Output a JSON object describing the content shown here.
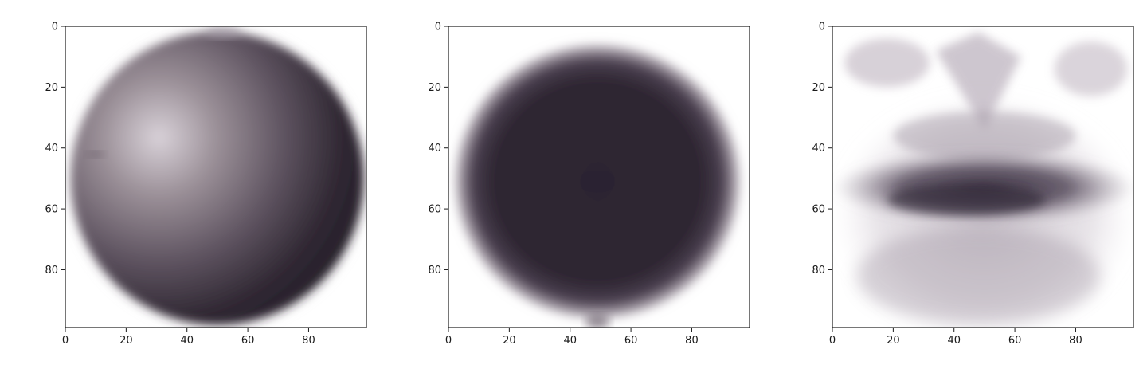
{
  "chart_data": [
    {
      "type": "heatmap",
      "title": "",
      "xlabel": "",
      "ylabel": "",
      "xlim": [
        0,
        99
      ],
      "ylim": [
        99,
        0
      ],
      "x_ticks": [
        0,
        20,
        40,
        60,
        80
      ],
      "y_ticks": [
        0,
        20,
        40,
        60,
        80
      ],
      "x_tick_labels": [
        "0",
        "20",
        "40",
        "60",
        "80"
      ],
      "y_tick_labels": [
        "0",
        "20",
        "40",
        "60",
        "80"
      ],
      "image": {
        "shape": "sphere",
        "center": [
          50,
          50
        ],
        "radius": 48,
        "highlight": [
          30,
          36
        ],
        "colormap": "purple-gray"
      }
    },
    {
      "type": "heatmap",
      "title": "",
      "xlabel": "",
      "ylabel": "",
      "xlim": [
        0,
        99
      ],
      "ylim": [
        99,
        0
      ],
      "x_ticks": [
        0,
        20,
        40,
        60,
        80
      ],
      "y_ticks": [
        0,
        20,
        40,
        60,
        80
      ],
      "x_tick_labels": [
        "0",
        "20",
        "40",
        "60",
        "80"
      ],
      "y_tick_labels": [
        "0",
        "20",
        "40",
        "60",
        "80"
      ],
      "image": {
        "shape": "dark-disk",
        "center": [
          49,
          51
        ],
        "radius": 46,
        "colormap": "purple-gray"
      }
    },
    {
      "type": "heatmap",
      "title": "",
      "xlabel": "",
      "ylabel": "",
      "xlim": [
        0,
        99
      ],
      "ylim": [
        99,
        0
      ],
      "x_ticks": [
        0,
        20,
        40,
        60,
        80
      ],
      "y_ticks": [
        0,
        20,
        40,
        60,
        80
      ],
      "x_tick_labels": [
        "0",
        "20",
        "40",
        "60",
        "80"
      ],
      "y_tick_labels": [
        "0",
        "20",
        "40",
        "60",
        "80"
      ],
      "image": {
        "shape": "diffuse-volume",
        "band_y": 55,
        "colormap": "purple-gray"
      }
    }
  ],
  "colors": {
    "axis": "#1a1a1a",
    "dark": "#2b2430",
    "mid": "#6b5f6f",
    "light": "#cfc8d0",
    "background": "#ffffff"
  }
}
